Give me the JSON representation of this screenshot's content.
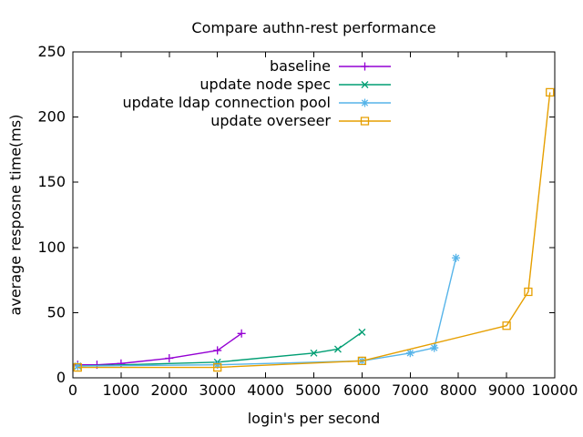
{
  "title": "Compare authn-rest performance",
  "chart_data": {
    "type": "line",
    "title": "Compare authn-rest performance",
    "xlabel": "login's per second",
    "ylabel": "average resposne time(ms)",
    "xlim": [
      0,
      10000
    ],
    "ylim": [
      0,
      250
    ],
    "xticks": [
      0,
      1000,
      2000,
      3000,
      4000,
      5000,
      6000,
      7000,
      8000,
      9000,
      10000
    ],
    "yticks": [
      0,
      50,
      100,
      150,
      200,
      250
    ],
    "grid": false,
    "legend_position": "inside-top-center",
    "text_color": "#000000",
    "border_color": "#000000",
    "background_color": "#ffffff",
    "series": [
      {
        "name": "baseline",
        "color": "#9400d3",
        "marker": "plus",
        "points": [
          [
            100,
            10
          ],
          [
            500,
            10
          ],
          [
            1000,
            11
          ],
          [
            2000,
            15
          ],
          [
            3000,
            21
          ],
          [
            3500,
            34
          ]
        ]
      },
      {
        "name": "update node spec",
        "color": "#009e73",
        "marker": "cross",
        "points": [
          [
            100,
            9
          ],
          [
            3000,
            12
          ],
          [
            5000,
            19
          ],
          [
            5500,
            22
          ],
          [
            6000,
            35
          ]
        ]
      },
      {
        "name": "update ldap connection pool",
        "color": "#56b4e9",
        "marker": "asterisk",
        "points": [
          [
            100,
            9
          ],
          [
            3000,
            10
          ],
          [
            6000,
            13
          ],
          [
            7000,
            19
          ],
          [
            7500,
            23
          ],
          [
            7950,
            92
          ]
        ]
      },
      {
        "name": "update overseer",
        "color": "#e69f00",
        "marker": "square",
        "points": [
          [
            100,
            8
          ],
          [
            3000,
            8
          ],
          [
            6000,
            13
          ],
          [
            9000,
            40
          ],
          [
            9450,
            66
          ],
          [
            9900,
            219
          ]
        ]
      }
    ]
  }
}
